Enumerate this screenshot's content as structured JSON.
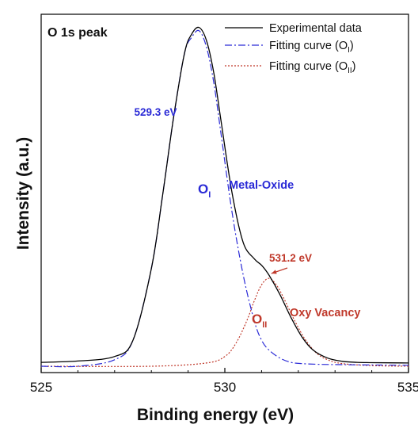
{
  "chart_data": {
    "type": "line",
    "title": "O 1s peak",
    "xlabel": "Binding energy (eV)",
    "ylabel": "Intensity (a.u.)",
    "xlim": [
      525,
      535
    ],
    "ylim": [
      0,
      1.1
    ],
    "xticks": [
      "525",
      "530",
      "535"
    ],
    "grid": false,
    "legend_position": "top-right",
    "series": [
      {
        "name": "Experimental data",
        "color": "#000000",
        "style": "solid",
        "x": [
          525.0,
          526.0,
          527.0,
          527.5,
          528.0,
          528.3,
          528.6,
          528.9,
          529.1,
          529.3,
          529.5,
          529.7,
          529.9,
          530.2,
          530.5,
          530.8,
          531.0,
          531.2,
          531.5,
          531.8,
          532.1,
          532.4,
          532.8,
          533.2,
          533.6,
          534.0,
          535.0
        ],
        "y": [
          0.012,
          0.016,
          0.03,
          0.08,
          0.3,
          0.52,
          0.76,
          0.96,
          1.02,
          1.04,
          1.0,
          0.9,
          0.75,
          0.53,
          0.38,
          0.33,
          0.31,
          0.28,
          0.22,
          0.15,
          0.09,
          0.05,
          0.025,
          0.015,
          0.012,
          0.011,
          0.01
        ]
      },
      {
        "name": "Fitting curve (OI)",
        "color": "#2a2ad6",
        "style": "dashdot",
        "x": [
          525.0,
          526.0,
          527.0,
          527.5,
          528.0,
          528.3,
          528.6,
          528.9,
          529.1,
          529.3,
          529.5,
          529.7,
          529.9,
          530.2,
          530.5,
          530.8,
          531.0,
          531.2,
          531.5,
          531.8,
          532.1,
          532.5,
          533.0,
          534.0,
          535.0
        ],
        "y": [
          0.0,
          0.0,
          0.02,
          0.08,
          0.3,
          0.52,
          0.76,
          0.96,
          1.01,
          1.03,
          0.98,
          0.87,
          0.71,
          0.47,
          0.28,
          0.14,
          0.08,
          0.05,
          0.025,
          0.012,
          0.008,
          0.006,
          0.005,
          0.004,
          0.003
        ]
      },
      {
        "name": "Fitting curve (OII)",
        "color": "#c0392b",
        "style": "dotted",
        "x": [
          525.0,
          528.0,
          529.5,
          530.0,
          530.3,
          530.6,
          530.8,
          531.0,
          531.2,
          531.4,
          531.6,
          531.9,
          532.2,
          532.5,
          532.8,
          533.2,
          534.0,
          535.0
        ],
        "y": [
          0.0,
          0.0,
          0.01,
          0.03,
          0.07,
          0.14,
          0.2,
          0.25,
          0.27,
          0.25,
          0.21,
          0.14,
          0.08,
          0.04,
          0.02,
          0.008,
          0.002,
          0.0
        ]
      }
    ],
    "annotations": {
      "peak1_energy": "529.3 eV",
      "peak1_x": 529.3,
      "peak2_energy": "531.2 eV",
      "peak2_x": 531.2,
      "peak2_y": 0.27,
      "oi_label": "O",
      "oi_sub": "I",
      "metal_oxide": "Metal-Oxide",
      "oii_label": "O",
      "oii_sub": "II",
      "oxy_vacancy": "Oxy Vacancy"
    },
    "legend_entries": [
      {
        "text": "Experimental data",
        "sub": "",
        "suffix": ""
      },
      {
        "text": "Fitting curve (O",
        "sub": "I",
        "suffix": ")"
      },
      {
        "text": "Fitting curve (O",
        "sub": "II",
        "suffix": ")"
      }
    ],
    "colors": {
      "blue_text": "#2a2ad6",
      "red_text": "#c0392b"
    }
  }
}
